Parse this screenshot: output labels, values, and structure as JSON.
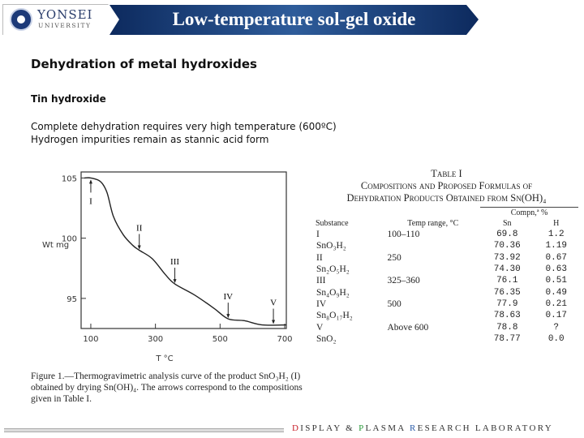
{
  "header": {
    "logo_name": "YONSEI",
    "logo_sub": "UNIVERSITY",
    "title": "Low-temperature sol-gel oxide"
  },
  "content": {
    "heading": "Dehydration of metal hydroxides",
    "subheading": "Tin hydroxide",
    "lines": [
      "Complete dehydration requires very high temperature (600ºC)",
      "Hydrogen impurities remain as stannic acid form"
    ]
  },
  "chart_data": {
    "type": "line",
    "xlabel": "T °C",
    "ylabel": "Wt mg",
    "xlim": [
      70,
      705
    ],
    "ylim": [
      92.5,
      105.5
    ],
    "xticks": [
      100,
      300,
      500,
      700
    ],
    "yticks": [
      95,
      100,
      105
    ],
    "x": [
      80,
      100,
      130,
      150,
      170,
      200,
      230,
      250,
      290,
      330,
      360,
      420,
      480,
      525,
      575,
      630,
      705
    ],
    "y": [
      105,
      105,
      104.7,
      103.8,
      101.8,
      100.3,
      99.4,
      99.0,
      98.3,
      97.0,
      96.2,
      95.3,
      94.2,
      93.3,
      93.15,
      92.8,
      92.8
    ],
    "annotations": [
      {
        "label": "I",
        "x": 100,
        "y": 105
      },
      {
        "label": "II",
        "x": 250,
        "y": 99.0
      },
      {
        "label": "III",
        "x": 360,
        "y": 96.2
      },
      {
        "label": "IV",
        "x": 525,
        "y": 93.3
      },
      {
        "label": "V",
        "x": 665,
        "y": 92.8
      }
    ],
    "caption": "Figure 1.—Thermogravimetric analysis curve of the product SnO₃H₂ (I) obtained by drying Sn(OH)₄. The arrows correspond to the compositions given in Table I."
  },
  "table": {
    "title": "Table I",
    "subtitle1": "Compositions and Proposed Formulas of",
    "subtitle2": "Dehydration Products Obtained from Sn(OH)₄",
    "group_header": "Compn,ª %",
    "headers": [
      "Substance",
      "Temp range, °C",
      "Sn",
      "H"
    ],
    "rows": [
      [
        "I",
        "100–110",
        "69.8",
        "1.2"
      ],
      [
        "SnO₃H₂",
        "",
        "70.36",
        "1.19"
      ],
      [
        "II",
        "250",
        "73.92",
        "0.67"
      ],
      [
        "Sn₂O₅H₂",
        "",
        "74.30",
        "0.63"
      ],
      [
        "III",
        "325–360",
        "76.1",
        "0.51"
      ],
      [
        "Sn₄O₉H₂",
        "",
        "76.35",
        "0.49"
      ],
      [
        "IV",
        "500",
        "77.9",
        "0.21"
      ],
      [
        "Sn₈O₁₇H₂",
        "",
        "78.63",
        "0.17"
      ],
      [
        "V",
        "Above 600",
        "78.8",
        "?"
      ],
      [
        "SnO₂",
        "",
        "78.77",
        "0.0"
      ]
    ]
  },
  "footer": {
    "d": "D",
    "isplay": "ISPLAY & ",
    "p": "P",
    "lasma": "LASMA ",
    "r": "R",
    "esearch": "ESEARCH LABORATORY",
    "colors": {
      "d": "#c8202a",
      "p": "#2a9a3a",
      "r": "#2a5caa"
    }
  }
}
